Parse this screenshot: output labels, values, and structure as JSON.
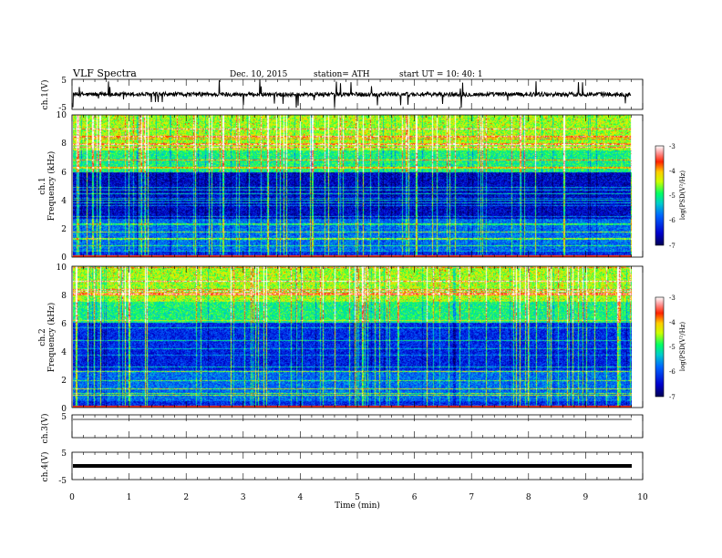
{
  "header": {
    "title": "VLF  Spectra",
    "date": "Dec. 10,  2015",
    "station": "station= ATH",
    "start": "start  UT  =    10: 40: 1"
  },
  "chart_data": [
    {
      "type": "line",
      "ylabel": "ch.1(V)",
      "xlim": [
        0,
        10
      ],
      "ylim": [
        -5,
        5
      ],
      "yticks": [
        "5",
        "-5"
      ],
      "baseline_V": 0,
      "amplitude_V": 1
    },
    {
      "type": "heatmap",
      "ylabel": "ch.1\nFrequency  (kHz)",
      "xlim": [
        0,
        10
      ],
      "ylim": [
        0,
        10
      ],
      "yticks": [
        "0",
        "2",
        "4",
        "6",
        "8",
        "10"
      ],
      "data_end_min": 9.8,
      "colorbar": {
        "label": "log(PSD(V²/Hz)",
        "range": [
          -7,
          -3
        ],
        "ticks": [
          "-3",
          "-4",
          "-5",
          "-6",
          "-7"
        ]
      }
    },
    {
      "type": "heatmap",
      "ylabel": "ch.2\nFrequency  (kHz)",
      "xlim": [
        0,
        10
      ],
      "ylim": [
        0,
        10
      ],
      "yticks": [
        "0",
        "2",
        "4",
        "6",
        "8",
        "10"
      ],
      "data_end_min": 9.8,
      "colorbar": {
        "label": "log(PSD(V²/Hz)",
        "range": [
          -7,
          -3
        ],
        "ticks": [
          "-3",
          "-4",
          "-5",
          "-6",
          "-7"
        ]
      }
    },
    {
      "type": "line",
      "ylabel": "ch.3(V)",
      "xlim": [
        0,
        10
      ],
      "ylim": [
        -5,
        5
      ],
      "yticks": [
        "5"
      ],
      "baseline_V": 5
    },
    {
      "type": "line",
      "ylabel": "ch.4(V)",
      "xlim": [
        0,
        10
      ],
      "ylim": [
        -5,
        5
      ],
      "yticks": [
        "5",
        "-5"
      ],
      "baseline_V": 0
    }
  ],
  "xaxis": {
    "label": "Time  (min)",
    "ticks": [
      "0",
      "1",
      "2",
      "3",
      "4",
      "5",
      "6",
      "7",
      "8",
      "9",
      "10"
    ]
  }
}
